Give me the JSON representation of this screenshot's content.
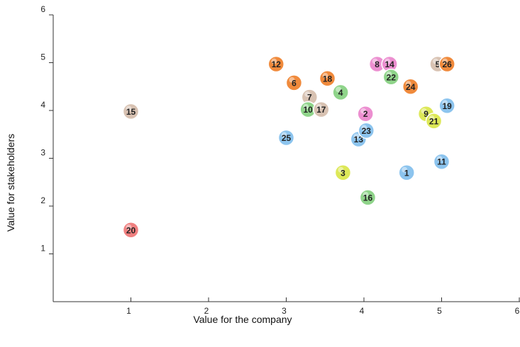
{
  "chart_data": {
    "type": "scatter",
    "title": "",
    "xlabel": "Value for the company",
    "ylabel": "Value for stakeholders",
    "xlim": [
      0,
      6
    ],
    "ylim": [
      0,
      6
    ],
    "x_ticks": [
      1,
      2,
      3,
      4,
      5,
      6
    ],
    "y_ticks": [
      1,
      2,
      3,
      4,
      5,
      6
    ],
    "grid": false,
    "legend": "none",
    "colors": {
      "orange": "#f08a3c",
      "pink": "#ec8fd0",
      "green": "#8fd48a",
      "blue": "#8cc4ee",
      "yellow": "#dde858",
      "beige": "#d8c2b2",
      "red": "#f08080"
    },
    "points": [
      {
        "label": "1",
        "x": 4.55,
        "y": 2.7,
        "color": "blue"
      },
      {
        "label": "2",
        "x": 4.02,
        "y": 3.93,
        "color": "pink"
      },
      {
        "label": "3",
        "x": 3.73,
        "y": 2.7,
        "color": "yellow"
      },
      {
        "label": "4",
        "x": 3.7,
        "y": 4.38,
        "color": "green"
      },
      {
        "label": "5",
        "x": 4.95,
        "y": 4.97,
        "color": "beige"
      },
      {
        "label": "6",
        "x": 3.1,
        "y": 4.58,
        "color": "orange"
      },
      {
        "label": "7",
        "x": 3.3,
        "y": 4.28,
        "color": "beige"
      },
      {
        "label": "8",
        "x": 4.17,
        "y": 4.97,
        "color": "pink"
      },
      {
        "label": "9",
        "x": 4.8,
        "y": 3.93,
        "color": "yellow"
      },
      {
        "label": "10",
        "x": 3.28,
        "y": 4.02,
        "color": "green"
      },
      {
        "label": "11",
        "x": 5.0,
        "y": 2.93,
        "color": "blue"
      },
      {
        "label": "12",
        "x": 2.87,
        "y": 4.97,
        "color": "orange"
      },
      {
        "label": "13",
        "x": 3.93,
        "y": 3.4,
        "color": "blue"
      },
      {
        "label": "14",
        "x": 4.33,
        "y": 4.97,
        "color": "pink"
      },
      {
        "label": "15",
        "x": 1.0,
        "y": 3.98,
        "color": "beige"
      },
      {
        "label": "16",
        "x": 4.05,
        "y": 2.18,
        "color": "green"
      },
      {
        "label": "17",
        "x": 3.45,
        "y": 4.02,
        "color": "beige"
      },
      {
        "label": "18",
        "x": 3.53,
        "y": 4.67,
        "color": "orange"
      },
      {
        "label": "19",
        "x": 5.07,
        "y": 4.1,
        "color": "blue"
      },
      {
        "label": "20",
        "x": 1.0,
        "y": 1.5,
        "color": "red"
      },
      {
        "label": "21",
        "x": 4.9,
        "y": 3.78,
        "color": "yellow"
      },
      {
        "label": "22",
        "x": 4.35,
        "y": 4.7,
        "color": "green"
      },
      {
        "label": "23",
        "x": 4.03,
        "y": 3.58,
        "color": "blue"
      },
      {
        "label": "24",
        "x": 4.6,
        "y": 4.5,
        "color": "orange"
      },
      {
        "label": "25",
        "x": 3.0,
        "y": 3.43,
        "color": "blue"
      },
      {
        "label": "26",
        "x": 5.07,
        "y": 4.97,
        "color": "orange"
      }
    ]
  }
}
